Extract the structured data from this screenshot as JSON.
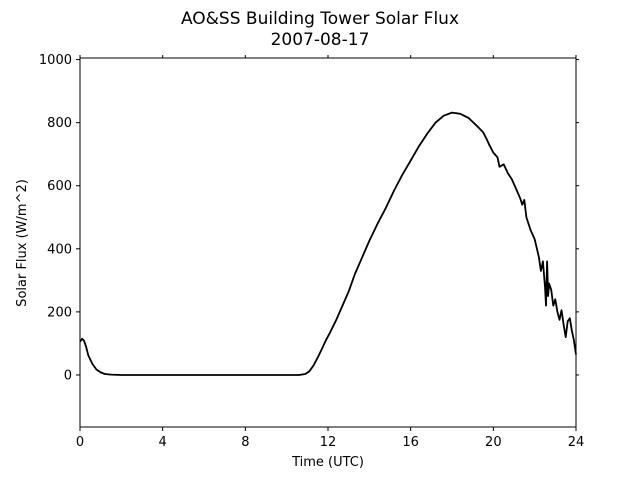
{
  "chart_data": {
    "type": "line",
    "title": "AO&SS Building Tower Solar Flux",
    "subtitle": "2007-08-17",
    "xlabel": "Time (UTC)",
    "ylabel": "Solar Flux (W/m^2)",
    "xlim": [
      0,
      24
    ],
    "ylim": [
      -165,
      1005
    ],
    "xticks": [
      0,
      4,
      8,
      12,
      16,
      20,
      24
    ],
    "yticks": [
      0,
      200,
      400,
      600,
      800,
      1000
    ],
    "grid": false,
    "line_color": "#000000",
    "series": [
      {
        "x": [
          0,
          0.1,
          0.2,
          0.3,
          0.4,
          0.6,
          0.8,
          1.0,
          1.2,
          1.5,
          2,
          4,
          6,
          8,
          10,
          10.6,
          10.9,
          11.1,
          11.3,
          11.5,
          11.7,
          11.9,
          12.1,
          12.4,
          12.7,
          13.0,
          13.3,
          13.6,
          14.0,
          14.4,
          14.8,
          15.2,
          15.6,
          16.0,
          16.4,
          16.8,
          17.2,
          17.6,
          18.0,
          18.4,
          18.8,
          19.2,
          19.5,
          19.7,
          19.8,
          20.0,
          20.2,
          20.3,
          20.5,
          20.7,
          20.9,
          21.1,
          21.3,
          21.4,
          21.5,
          21.6,
          21.8,
          22.0,
          22.2,
          22.3,
          22.4,
          22.5,
          22.55,
          22.6,
          22.65,
          22.7,
          22.8,
          22.9,
          23.0,
          23.1,
          23.2,
          23.3,
          23.4,
          23.5,
          23.6,
          23.7,
          23.8,
          23.9,
          24.0
        ],
        "y": [
          105,
          115,
          108,
          88,
          62,
          35,
          17,
          8,
          3,
          1,
          0,
          0,
          0,
          0,
          0,
          0,
          3,
          12,
          30,
          55,
          82,
          110,
          135,
          175,
          220,
          265,
          320,
          365,
          425,
          480,
          530,
          585,
          635,
          680,
          725,
          765,
          800,
          822,
          832,
          828,
          815,
          790,
          770,
          745,
          730,
          705,
          690,
          660,
          668,
          640,
          620,
          590,
          560,
          540,
          555,
          500,
          460,
          430,
          375,
          330,
          360,
          280,
          220,
          360,
          250,
          290,
          270,
          220,
          240,
          200,
          175,
          205,
          160,
          120,
          170,
          180,
          140,
          110,
          65
        ]
      }
    ]
  }
}
